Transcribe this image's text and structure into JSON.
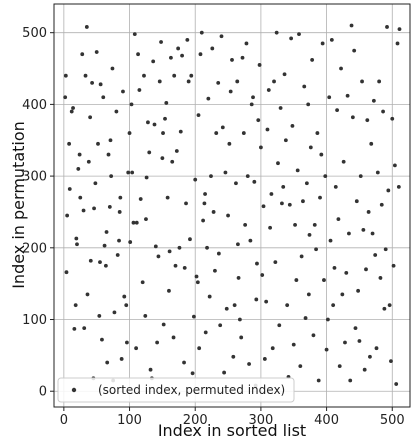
{
  "chart_data": {
    "type": "scatter",
    "xlabel": "Index in sorted list",
    "ylabel": "Index in permutation",
    "xlim": [
      -15,
      527
    ],
    "ylim": [
      -22,
      540
    ],
    "xticks": [
      "0",
      "100",
      "200",
      "300",
      "400",
      "500"
    ],
    "yticks": [
      "0",
      "100",
      "200",
      "300",
      "400",
      "500"
    ],
    "grid": true,
    "legend": {
      "placement": "lower-left",
      "entries": [
        "(sorted index, permuted index)"
      ]
    },
    "marker_color": "#333333",
    "series": [
      {
        "name": "(sorted index, permuted index)",
        "points": [
          [
            2,
            410
          ],
          [
            3,
            440
          ],
          [
            4,
            166
          ],
          [
            5,
            245
          ],
          [
            8,
            345
          ],
          [
            9,
            282
          ],
          [
            12,
            390
          ],
          [
            14,
            395
          ],
          [
            16,
            87
          ],
          [
            18,
            120
          ],
          [
            19,
            213
          ],
          [
            20,
            205
          ],
          [
            22,
            310
          ],
          [
            24,
            330
          ],
          [
            25,
            270
          ],
          [
            28,
            470
          ],
          [
            30,
            252
          ],
          [
            31,
            88
          ],
          [
            33,
            440
          ],
          [
            35,
            508
          ],
          [
            36,
            135
          ],
          [
            38,
            320
          ],
          [
            40,
            382
          ],
          [
            41,
            182
          ],
          [
            43,
            430
          ],
          [
            45,
            18
          ],
          [
            46,
            255
          ],
          [
            48,
            290
          ],
          [
            50,
            473
          ],
          [
            52,
            345
          ],
          [
            54,
            105
          ],
          [
            55,
            180
          ],
          [
            56,
            428
          ],
          [
            58,
            72
          ],
          [
            60,
            410
          ],
          [
            62,
            203
          ],
          [
            64,
            175
          ],
          [
            65,
            222
          ],
          [
            66,
            40
          ],
          [
            68,
            330
          ],
          [
            70,
            257
          ],
          [
            71,
            350
          ],
          [
            72,
            300
          ],
          [
            74,
            450
          ],
          [
            75,
            15
          ],
          [
            77,
            110
          ],
          [
            80,
            390
          ],
          [
            82,
            190
          ],
          [
            84,
            210
          ],
          [
            85,
            250
          ],
          [
            86,
            270
          ],
          [
            88,
            45
          ],
          [
            90,
            418
          ],
          [
            92,
            132
          ],
          [
            95,
            120
          ],
          [
            96,
            68
          ],
          [
            98,
            305
          ],
          [
            100,
            360
          ],
          [
            101,
            208
          ],
          [
            103,
            400
          ],
          [
            104,
            305
          ],
          [
            106,
            235
          ],
          [
            108,
            498
          ],
          [
            110,
            60
          ],
          [
            111,
            235
          ],
          [
            113,
            470
          ],
          [
            115,
            420
          ],
          [
            117,
            268
          ],
          [
            120,
            152
          ],
          [
            122,
            440
          ],
          [
            124,
            105
          ],
          [
            125,
            240
          ],
          [
            126,
            298
          ],
          [
            128,
            375
          ],
          [
            130,
            333
          ],
          [
            132,
            30
          ],
          [
            134,
            18
          ],
          [
            136,
            460
          ],
          [
            138,
            372
          ],
          [
            140,
            202
          ],
          [
            142,
            68
          ],
          [
            144,
            188
          ],
          [
            146,
            432
          ],
          [
            148,
            487
          ],
          [
            150,
            325
          ],
          [
            151,
            360
          ],
          [
            152,
            93
          ],
          [
            154,
            380
          ],
          [
            156,
            402
          ],
          [
            158,
            270
          ],
          [
            160,
            140
          ],
          [
            161,
            195
          ],
          [
            163,
            465
          ],
          [
            165,
            320
          ],
          [
            167,
            75
          ],
          [
            168,
            440
          ],
          [
            170,
            175
          ],
          [
            172,
            335
          ],
          [
            174,
            478
          ],
          [
            176,
            200
          ],
          [
            178,
            362
          ],
          [
            180,
            468
          ],
          [
            183,
            40
          ],
          [
            184,
            172
          ],
          [
            186,
            262
          ],
          [
            188,
            490
          ],
          [
            190,
            432
          ],
          [
            192,
            212
          ],
          [
            194,
            440
          ],
          [
            196,
            25
          ],
          [
            198,
            104
          ],
          [
            200,
            295
          ],
          [
            202,
            160
          ],
          [
            204,
            152
          ],
          [
            205,
            385
          ],
          [
            206,
            60
          ],
          [
            208,
            470
          ],
          [
            210,
            500
          ],
          [
            212,
            238
          ],
          [
            214,
            262
          ],
          [
            215,
            275
          ],
          [
            216,
            82
          ],
          [
            218,
            200
          ],
          [
            220,
            408
          ],
          [
            222,
            132
          ],
          [
            224,
            300
          ],
          [
            226,
            478
          ],
          [
            228,
            250
          ],
          [
            230,
            168
          ],
          [
            232,
            360
          ],
          [
            235,
            430
          ],
          [
            236,
            192
          ],
          [
            238,
            92
          ],
          [
            240,
            495
          ],
          [
            242,
            368
          ],
          [
            244,
            26
          ],
          [
            246,
            305
          ],
          [
            248,
            115
          ],
          [
            250,
            245
          ],
          [
            252,
            345
          ],
          [
            254,
            418
          ],
          [
            256,
            462
          ],
          [
            258,
            48
          ],
          [
            260,
            120
          ],
          [
            262,
            290
          ],
          [
            264,
            432
          ],
          [
            265,
            205
          ],
          [
            266,
            158
          ],
          [
            268,
            100
          ],
          [
            270,
            75
          ],
          [
            272,
            465
          ],
          [
            274,
            360
          ],
          [
            276,
            232
          ],
          [
            278,
            485
          ],
          [
            280,
            300
          ],
          [
            282,
            38
          ],
          [
            284,
            210
          ],
          [
            286,
            400
          ],
          [
            288,
            410
          ],
          [
            290,
            292
          ],
          [
            292,
            8
          ],
          [
            293,
            128
          ],
          [
            294,
            178
          ],
          [
            296,
            378
          ],
          [
            298,
            455
          ],
          [
            300,
            340
          ],
          [
            302,
            162
          ],
          [
            304,
            258
          ],
          [
            306,
            45
          ],
          [
            308,
            125
          ],
          [
            310,
            365
          ],
          [
            312,
            420
          ],
          [
            314,
            228
          ],
          [
            316,
            275
          ],
          [
            318,
            60
          ],
          [
            320,
            432
          ],
          [
            322,
            180
          ],
          [
            324,
            500
          ],
          [
            326,
            318
          ],
          [
            328,
            92
          ],
          [
            330,
            395
          ],
          [
            332,
            262
          ],
          [
            334,
            285
          ],
          [
            336,
            442
          ],
          [
            338,
            350
          ],
          [
            340,
            120
          ],
          [
            342,
            20
          ],
          [
            344,
            260
          ],
          [
            346,
            492
          ],
          [
            348,
            370
          ],
          [
            350,
            65
          ],
          [
            352,
            232
          ],
          [
            354,
            155
          ],
          [
            356,
            308
          ],
          [
            358,
            498
          ],
          [
            360,
            35
          ],
          [
            362,
            188
          ],
          [
            364,
            265
          ],
          [
            366,
            425
          ],
          [
            368,
            102
          ],
          [
            370,
            290
          ],
          [
            372,
            400
          ],
          [
            373,
            135
          ],
          [
            374,
            218
          ],
          [
            376,
            340
          ],
          [
            378,
            462
          ],
          [
            380,
            78
          ],
          [
            382,
            232
          ],
          [
            384,
            198
          ],
          [
            386,
            360
          ],
          [
            388,
            15
          ],
          [
            390,
            270
          ],
          [
            392,
            330
          ],
          [
            394,
            485
          ],
          [
            396,
            155
          ],
          [
            398,
            300
          ],
          [
            400,
            58
          ],
          [
            402,
            100
          ],
          [
            404,
            410
          ],
          [
            406,
            210
          ],
          [
            408,
            490
          ],
          [
            410,
            120
          ],
          [
            412,
            172
          ],
          [
            414,
            285
          ],
          [
            416,
            392
          ],
          [
            418,
            240
          ],
          [
            420,
            35
          ],
          [
            422,
            450
          ],
          [
            424,
            135
          ],
          [
            426,
            320
          ],
          [
            428,
            68
          ],
          [
            430,
            165
          ],
          [
            432,
            412
          ],
          [
            434,
            220
          ],
          [
            436,
            15
          ],
          [
            438,
            510
          ],
          [
            440,
            382
          ],
          [
            442,
            475
          ],
          [
            444,
            88
          ],
          [
            446,
            265
          ],
          [
            448,
            140
          ],
          [
            450,
            70
          ],
          [
            452,
            300
          ],
          [
            454,
            432
          ],
          [
            456,
            225
          ],
          [
            458,
            30
          ],
          [
            460,
            170
          ],
          [
            462,
            378
          ],
          [
            464,
            250
          ],
          [
            466,
            48
          ],
          [
            468,
            345
          ],
          [
            470,
            220
          ],
          [
            472,
            405
          ],
          [
            474,
            190
          ],
          [
            476,
            60
          ],
          [
            478,
            305
          ],
          [
            480,
            432
          ],
          [
            482,
            158
          ],
          [
            484,
            260
          ],
          [
            486,
            390
          ],
          [
            488,
            115
          ],
          [
            490,
            198
          ],
          [
            492,
            508
          ],
          [
            494,
            280
          ],
          [
            496,
            120
          ],
          [
            498,
            42
          ],
          [
            500,
            380
          ],
          [
            502,
            175
          ],
          [
            504,
            315
          ],
          [
            506,
            10
          ],
          [
            508,
            485
          ],
          [
            510,
            285
          ],
          [
            511,
            505
          ]
        ]
      }
    ]
  }
}
